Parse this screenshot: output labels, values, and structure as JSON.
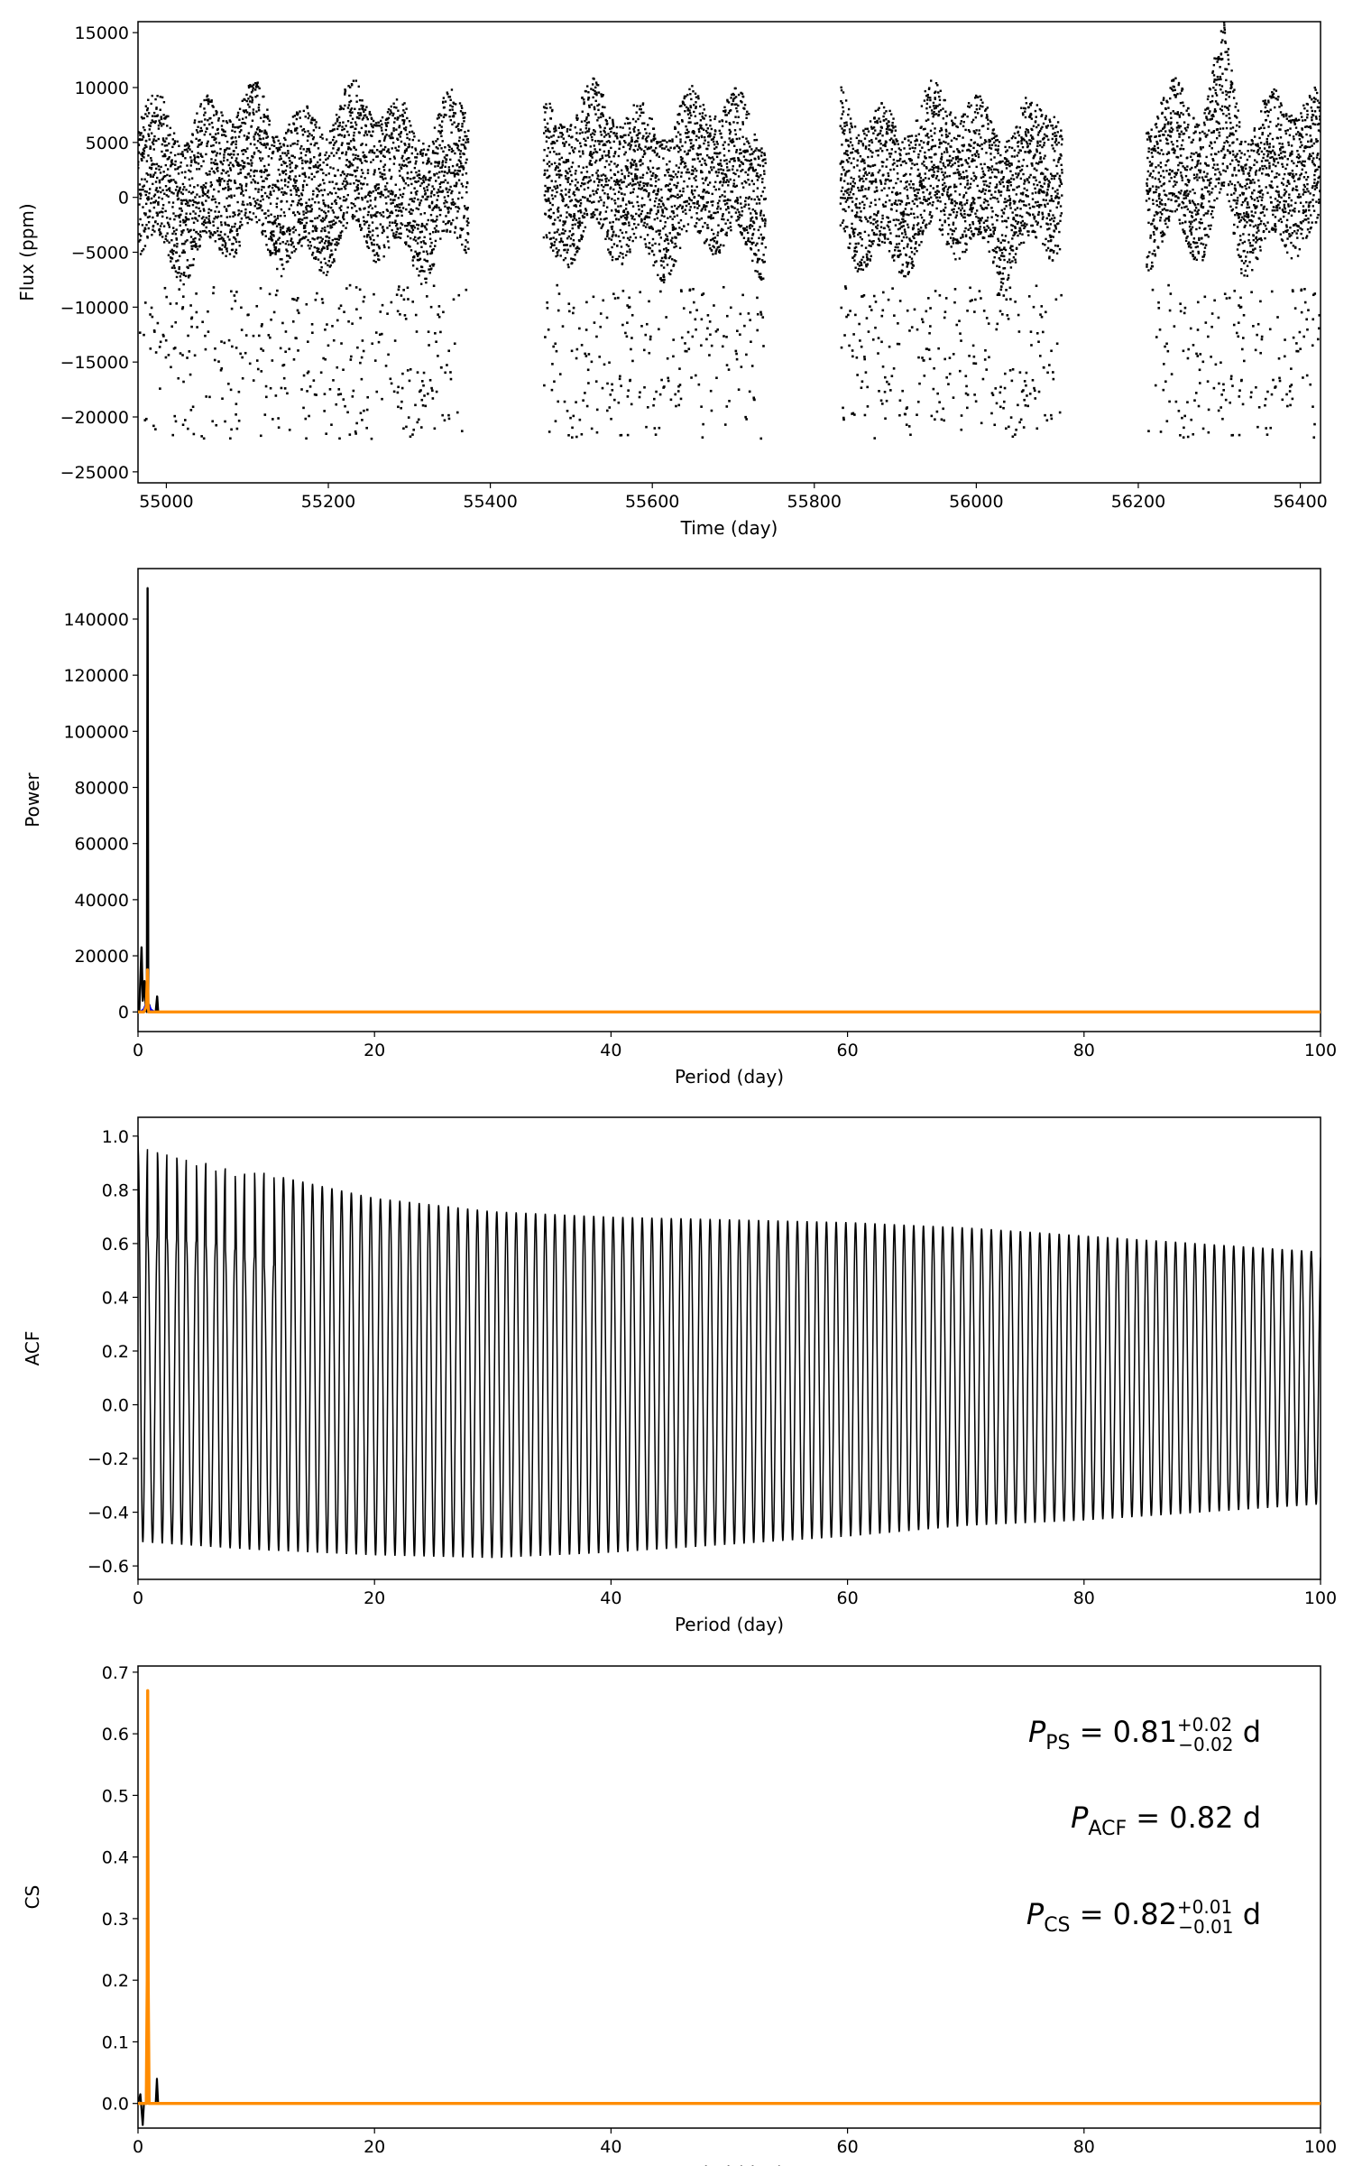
{
  "chart_data": [
    {
      "type": "scatter",
      "xlabel": "Time (day)",
      "ylabel": "Flux (ppm)",
      "xlim": [
        54965,
        56425
      ],
      "ylim": [
        -26000,
        16000
      ],
      "xticks": [
        55000,
        55200,
        55400,
        55600,
        55800,
        56000,
        56200,
        56400
      ],
      "yticks": [
        -25000,
        -20000,
        -15000,
        -10000,
        -5000,
        0,
        5000,
        10000,
        15000
      ],
      "grid": false,
      "marker_color": "#000000",
      "segments": [
        {
          "start": 54965,
          "end": 55373
        },
        {
          "start": 55466,
          "end": 55740
        },
        {
          "start": 55832,
          "end": 56106
        },
        {
          "start": 56210,
          "end": 56425
        }
      ],
      "main_band": {
        "low": -5000,
        "high": 8000
      },
      "dip_points": {
        "low": -22000,
        "high": -8000
      },
      "flare": {
        "x": 56305,
        "peak": 15500
      }
    },
    {
      "type": "line",
      "xlabel": "Period (day)",
      "ylabel": "Power",
      "xlim": [
        0,
        100
      ],
      "ylim": [
        -7000,
        158000
      ],
      "xticks": [
        0,
        20,
        40,
        60,
        80,
        100
      ],
      "yticks": [
        0,
        20000,
        40000,
        60000,
        80000,
        100000,
        120000,
        140000
      ],
      "grid": false,
      "series": [
        {
          "color": "#000000",
          "x": [
            0.1,
            0.3,
            0.4,
            0.55,
            0.65,
            0.75,
            0.81,
            0.87,
            0.95,
            1.1,
            1.5,
            1.62,
            1.7,
            2.0,
            100
          ],
          "values": [
            0,
            23000,
            4000,
            11000,
            2000,
            0,
            151000,
            0,
            2500,
            0,
            0,
            5500,
            0,
            0,
            0
          ]
        },
        {
          "color": "#0000ff",
          "x": [
            0.2,
            0.5,
            0.7,
            0.8,
            0.9,
            1.1,
            1.4
          ],
          "values": [
            0,
            1000,
            3000,
            1500,
            2500,
            800,
            0
          ]
        },
        {
          "color": "#ff8c00",
          "x": [
            0,
            0.5,
            0.7,
            0.8,
            0.85,
            0.9,
            1.0,
            100
          ],
          "values": [
            0,
            0,
            2000,
            15000,
            3000,
            0,
            0,
            0
          ]
        }
      ]
    },
    {
      "type": "line",
      "xlabel": "Period (day)",
      "ylabel": "ACF",
      "xlim": [
        0,
        100
      ],
      "ylim": [
        -0.65,
        1.07
      ],
      "xticks": [
        0,
        20,
        40,
        60,
        80,
        100
      ],
      "yticks": [
        -0.6,
        -0.4,
        -0.2,
        0.0,
        0.2,
        0.4,
        0.6,
        0.8,
        1.0
      ],
      "grid": false,
      "period": 0.82,
      "odd_peaks": [
        0.63,
        0.62,
        0.61,
        0.6,
        0.58,
        0.55,
        0.52
      ],
      "even_peaks": [
        0.96,
        0.94,
        0.92,
        0.9,
        0.88,
        0.86
      ],
      "peak_envelope": {
        "x": [
          0,
          10,
          20,
          30,
          40,
          50,
          60,
          70,
          80,
          90,
          100
        ],
        "values": [
          1.0,
          0.87,
          0.77,
          0.72,
          0.7,
          0.69,
          0.68,
          0.66,
          0.63,
          0.6,
          0.57
        ]
      },
      "trough_envelope": {
        "x": [
          0,
          10,
          20,
          30,
          40,
          50,
          60,
          70,
          80,
          90,
          100
        ],
        "values": [
          -0.51,
          -0.54,
          -0.56,
          -0.57,
          -0.55,
          -0.52,
          -0.49,
          -0.45,
          -0.43,
          -0.4,
          -0.37
        ]
      },
      "series": [
        {
          "color": "#000000"
        }
      ]
    },
    {
      "type": "line",
      "xlabel": "Period (day)",
      "ylabel": "CS",
      "xlim": [
        0,
        100
      ],
      "ylim": [
        -0.04,
        0.71
      ],
      "xticks": [
        0,
        20,
        40,
        60,
        80,
        100
      ],
      "yticks": [
        0.0,
        0.1,
        0.2,
        0.3,
        0.4,
        0.5,
        0.6,
        0.7
      ],
      "grid": false,
      "series": [
        {
          "color": "#000000",
          "x": [
            0,
            0.2,
            0.3,
            0.4,
            0.5,
            0.6,
            1.5,
            1.6,
            1.7,
            100
          ],
          "values": [
            0,
            0.015,
            -0.01,
            -0.035,
            0,
            0,
            0,
            0.04,
            0,
            0
          ]
        },
        {
          "color": "#ff8c00",
          "x": [
            0,
            0.7,
            0.78,
            0.82,
            0.86,
            0.94,
            100
          ],
          "values": [
            0,
            0,
            0.2,
            0.67,
            0.2,
            0,
            0
          ]
        }
      ],
      "annotations": [
        {
          "symbol": "P",
          "sub": "PS",
          "text": " = 0.81",
          "sup": "+0.02",
          "inf": "−0.02",
          "unit": " d"
        },
        {
          "symbol": "P",
          "sub": "ACF",
          "text": " = 0.82",
          "sup": "",
          "inf": "",
          "unit": " d"
        },
        {
          "symbol": "P",
          "sub": "CS",
          "text": " = 0.82",
          "sup": "+0.01",
          "inf": "−0.01",
          "unit": " d"
        }
      ]
    }
  ]
}
